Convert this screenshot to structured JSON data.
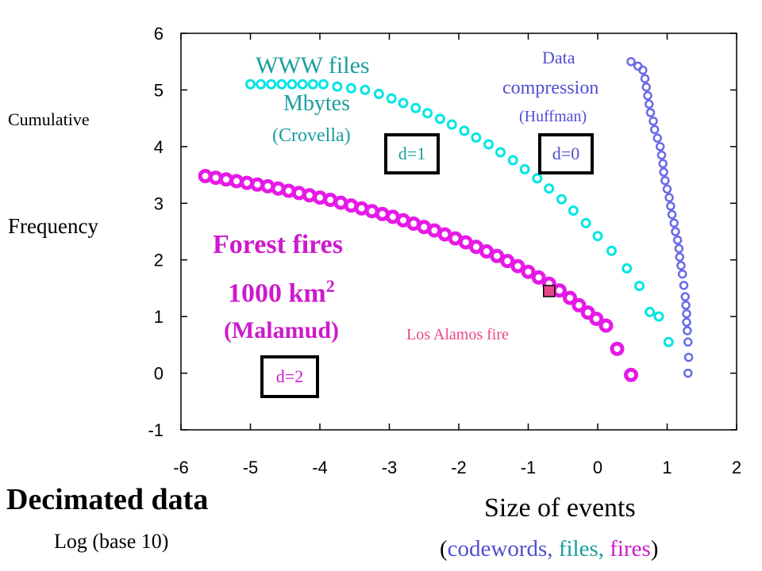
{
  "chart_data": {
    "type": "scatter",
    "x_ticks": [
      "-6",
      "-5",
      "-4",
      "-3",
      "-2",
      "-1",
      "0",
      "1",
      "2"
    ],
    "y_ticks": [
      "6",
      "5",
      "4",
      "3",
      "2",
      "1",
      "0",
      "-1"
    ],
    "xlim": [
      -6,
      2
    ],
    "ylim": [
      -1,
      6
    ],
    "ylabel_top": "Cumulative",
    "ylabel_bottom": "Frequency",
    "xlabel": "Size of events",
    "xlabel_sub": {
      "open": "(",
      "codewords": "codewords,",
      "files": "files,",
      "fires": "fires",
      "close": ")"
    },
    "footnote_title": "Decimated data",
    "footnote_sub": "Log (base 10)",
    "series": [
      {
        "key": "www",
        "label_lines": [
          "WWW files",
          "Mbytes",
          "(Crovella)"
        ],
        "box_label": "d=1",
        "color": "#00e5e5",
        "text_color": "#1a9e9e",
        "points": [
          [
            -5.0,
            5.1
          ],
          [
            -4.85,
            5.1
          ],
          [
            -4.7,
            5.1
          ],
          [
            -4.55,
            5.1
          ],
          [
            -4.4,
            5.1
          ],
          [
            -4.25,
            5.1
          ],
          [
            -4.1,
            5.1
          ],
          [
            -3.95,
            5.1
          ],
          [
            -3.75,
            5.06
          ],
          [
            -3.55,
            5.03
          ],
          [
            -3.35,
            5.0
          ],
          [
            -3.15,
            4.93
          ],
          [
            -2.97,
            4.85
          ],
          [
            -2.8,
            4.77
          ],
          [
            -2.62,
            4.68
          ],
          [
            -2.45,
            4.59
          ],
          [
            -2.27,
            4.49
          ],
          [
            -2.1,
            4.39
          ],
          [
            -1.92,
            4.28
          ],
          [
            -1.75,
            4.16
          ],
          [
            -1.57,
            4.04
          ],
          [
            -1.4,
            3.9
          ],
          [
            -1.22,
            3.76
          ],
          [
            -1.05,
            3.6
          ],
          [
            -0.87,
            3.44
          ],
          [
            -0.7,
            3.26
          ],
          [
            -0.52,
            3.07
          ],
          [
            -0.35,
            2.87
          ],
          [
            -0.17,
            2.65
          ],
          [
            0.0,
            2.42
          ],
          [
            0.2,
            2.16
          ],
          [
            0.42,
            1.85
          ],
          [
            0.6,
            1.54
          ],
          [
            0.75,
            1.08
          ],
          [
            0.88,
            1.0
          ],
          [
            1.02,
            0.55
          ]
        ]
      },
      {
        "key": "huffman",
        "label_lines": [
          "Data",
          "compression",
          "(Huffman)"
        ],
        "box_label": "d=0",
        "color": "#6a6ae6",
        "text_color": "#4f4fcf",
        "points": [
          [
            0.48,
            5.5
          ],
          [
            0.58,
            5.42
          ],
          [
            0.65,
            5.35
          ],
          [
            0.68,
            5.2
          ],
          [
            0.7,
            5.05
          ],
          [
            0.72,
            4.9
          ],
          [
            0.74,
            4.75
          ],
          [
            0.76,
            4.6
          ],
          [
            0.8,
            4.45
          ],
          [
            0.82,
            4.3
          ],
          [
            0.86,
            4.15
          ],
          [
            0.9,
            4.0
          ],
          [
            0.92,
            3.85
          ],
          [
            0.94,
            3.7
          ],
          [
            0.95,
            3.55
          ],
          [
            0.97,
            3.4
          ],
          [
            1.0,
            3.25
          ],
          [
            1.03,
            3.1
          ],
          [
            1.05,
            2.95
          ],
          [
            1.07,
            2.8
          ],
          [
            1.1,
            2.65
          ],
          [
            1.12,
            2.5
          ],
          [
            1.15,
            2.35
          ],
          [
            1.17,
            2.2
          ],
          [
            1.18,
            2.05
          ],
          [
            1.2,
            1.9
          ],
          [
            1.22,
            1.75
          ],
          [
            1.24,
            1.55
          ],
          [
            1.26,
            1.35
          ],
          [
            1.27,
            1.2
          ],
          [
            1.28,
            1.05
          ],
          [
            1.28,
            0.9
          ],
          [
            1.29,
            0.75
          ],
          [
            1.3,
            0.55
          ],
          [
            1.31,
            0.28
          ],
          [
            1.3,
            0.0
          ]
        ]
      },
      {
        "key": "fires",
        "label_lines": [
          "Forest fires",
          "1000 km",
          "(Malamud)"
        ],
        "label_sup": "2",
        "box_label": "d=2",
        "color": "#e61ae6",
        "text_color": "#cc1acc",
        "points": [
          [
            -5.65,
            3.48
          ],
          [
            -5.5,
            3.45
          ],
          [
            -5.35,
            3.42
          ],
          [
            -5.2,
            3.39
          ],
          [
            -5.05,
            3.36
          ],
          [
            -4.9,
            3.33
          ],
          [
            -4.75,
            3.3
          ],
          [
            -4.6,
            3.26
          ],
          [
            -4.45,
            3.22
          ],
          [
            -4.3,
            3.18
          ],
          [
            -4.15,
            3.14
          ],
          [
            -4.0,
            3.1
          ],
          [
            -3.85,
            3.06
          ],
          [
            -3.7,
            3.01
          ],
          [
            -3.55,
            2.96
          ],
          [
            -3.4,
            2.91
          ],
          [
            -3.25,
            2.86
          ],
          [
            -3.1,
            2.81
          ],
          [
            -2.95,
            2.76
          ],
          [
            -2.8,
            2.7
          ],
          [
            -2.65,
            2.64
          ],
          [
            -2.5,
            2.58
          ],
          [
            -2.35,
            2.52
          ],
          [
            -2.2,
            2.45
          ],
          [
            -2.05,
            2.38
          ],
          [
            -1.9,
            2.31
          ],
          [
            -1.75,
            2.23
          ],
          [
            -1.6,
            2.15
          ],
          [
            -1.45,
            2.07
          ],
          [
            -1.3,
            1.98
          ],
          [
            -1.15,
            1.89
          ],
          [
            -1.0,
            1.79
          ],
          [
            -0.85,
            1.69
          ],
          [
            -0.7,
            1.58
          ],
          [
            -0.55,
            1.46
          ],
          [
            -0.4,
            1.33
          ],
          [
            -0.27,
            1.2
          ],
          [
            -0.14,
            1.07
          ],
          [
            -0.02,
            0.96
          ],
          [
            0.12,
            0.84
          ],
          [
            0.28,
            0.43
          ],
          [
            0.48,
            -0.03
          ]
        ]
      }
    ],
    "annotation": {
      "label": "Los Alamos fire",
      "x": -0.7,
      "y": 1.45,
      "color": "#e8468a"
    }
  }
}
